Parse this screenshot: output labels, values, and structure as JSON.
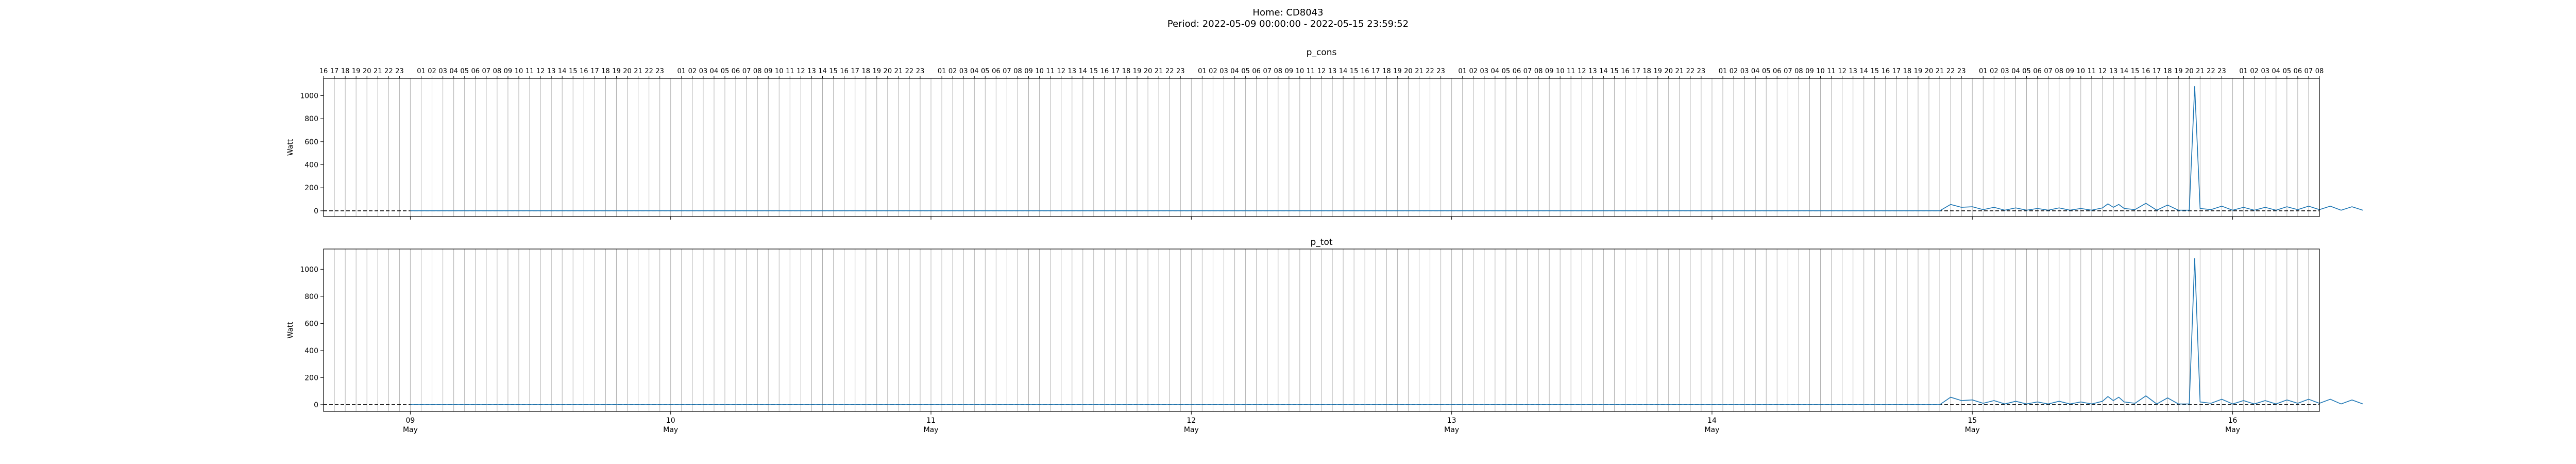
{
  "header": {
    "title": "Home: CD8043",
    "subtitle": "Period: 2022-05-09 00:00:00 - 2022-05-15 23:59:52"
  },
  "chart_data": [
    {
      "type": "line",
      "title": "p_cons",
      "ylabel": "Watt",
      "xlabel": "",
      "x_range": [
        "2022-05-08 16:00",
        "2022-05-16 08:00"
      ],
      "ylim": [
        -50,
        1150
      ],
      "yticks": [
        0,
        200,
        400,
        600,
        800,
        1000
      ],
      "x_ticks": [
        {
          "t": "2022-05-09 00:00",
          "day": "09",
          "month": "May"
        },
        {
          "t": "2022-05-10 00:00",
          "day": "10",
          "month": "May"
        },
        {
          "t": "2022-05-11 00:00",
          "day": "11",
          "month": "May"
        },
        {
          "t": "2022-05-12 00:00",
          "day": "12",
          "month": "May"
        },
        {
          "t": "2022-05-13 00:00",
          "day": "13",
          "month": "May"
        },
        {
          "t": "2022-05-14 00:00",
          "day": "14",
          "month": "May"
        },
        {
          "t": "2022-05-15 00:00",
          "day": "15",
          "month": "May"
        },
        {
          "t": "2022-05-16 00:00",
          "day": "16",
          "month": "May"
        }
      ],
      "hour_ticks": "hourly labels 01–23 along top axis",
      "baseline": 0,
      "grid": "vertical hourly lines",
      "series": [
        {
          "color": "#1f77b4",
          "points": [
            [
              "2022-05-09 00:00",
              0
            ],
            [
              "2022-05-14 21:00",
              0
            ],
            [
              "2022-05-14 22:00",
              55
            ],
            [
              "2022-05-14 23:00",
              30
            ],
            [
              "2022-05-15 00:00",
              35
            ],
            [
              "2022-05-15 01:00",
              10
            ],
            [
              "2022-05-15 02:00",
              30
            ],
            [
              "2022-05-15 03:00",
              5
            ],
            [
              "2022-05-15 04:00",
              25
            ],
            [
              "2022-05-15 05:00",
              5
            ],
            [
              "2022-05-15 06:00",
              20
            ],
            [
              "2022-05-15 07:00",
              5
            ],
            [
              "2022-05-15 08:00",
              25
            ],
            [
              "2022-05-15 09:00",
              5
            ],
            [
              "2022-05-15 10:00",
              20
            ],
            [
              "2022-05-15 11:00",
              5
            ],
            [
              "2022-05-15 12:00",
              25
            ],
            [
              "2022-05-15 12:30",
              60
            ],
            [
              "2022-05-15 13:00",
              30
            ],
            [
              "2022-05-15 13:30",
              55
            ],
            [
              "2022-05-15 14:00",
              20
            ],
            [
              "2022-05-15 15:00",
              10
            ],
            [
              "2022-05-15 16:00",
              65
            ],
            [
              "2022-05-15 17:00",
              5
            ],
            [
              "2022-05-15 18:00",
              50
            ],
            [
              "2022-05-15 19:00",
              5
            ],
            [
              "2022-05-15 20:00",
              5
            ],
            [
              "2022-05-15 20:30",
              1080
            ],
            [
              "2022-05-15 21:00",
              20
            ],
            [
              "2022-05-15 22:00",
              10
            ],
            [
              "2022-05-15 23:00",
              40
            ],
            [
              "2022-05-16 00:00",
              5
            ],
            [
              "2022-05-16 01:00",
              30
            ],
            [
              "2022-05-16 02:00",
              5
            ],
            [
              "2022-05-16 03:00",
              30
            ],
            [
              "2022-05-16 04:00",
              5
            ],
            [
              "2022-05-16 05:00",
              35
            ],
            [
              "2022-05-16 06:00",
              10
            ],
            [
              "2022-05-16 07:00",
              40
            ],
            [
              "2022-05-16 08:00",
              10
            ],
            [
              "2022-05-16 09:00",
              40
            ],
            [
              "2022-05-16 10:00",
              5
            ],
            [
              "2022-05-16 11:00",
              35
            ],
            [
              "2022-05-16 12:00",
              5
            ]
          ]
        }
      ]
    },
    {
      "type": "line",
      "title": "p_tot",
      "ylabel": "Watt",
      "xlabel": "",
      "x_range": [
        "2022-05-08 16:00",
        "2022-05-16 08:00"
      ],
      "ylim": [
        -50,
        1150
      ],
      "yticks": [
        0,
        200,
        400,
        600,
        800,
        1000
      ],
      "baseline": 0,
      "grid": "vertical hourly lines",
      "series": [
        {
          "color": "#1f77b4",
          "points": [
            [
              "2022-05-09 00:00",
              0
            ],
            [
              "2022-05-14 21:00",
              0
            ],
            [
              "2022-05-14 22:00",
              55
            ],
            [
              "2022-05-14 23:00",
              30
            ],
            [
              "2022-05-15 00:00",
              35
            ],
            [
              "2022-05-15 01:00",
              10
            ],
            [
              "2022-05-15 02:00",
              30
            ],
            [
              "2022-05-15 03:00",
              5
            ],
            [
              "2022-05-15 04:00",
              25
            ],
            [
              "2022-05-15 05:00",
              5
            ],
            [
              "2022-05-15 06:00",
              20
            ],
            [
              "2022-05-15 07:00",
              5
            ],
            [
              "2022-05-15 08:00",
              25
            ],
            [
              "2022-05-15 09:00",
              5
            ],
            [
              "2022-05-15 10:00",
              20
            ],
            [
              "2022-05-15 11:00",
              5
            ],
            [
              "2022-05-15 12:00",
              25
            ],
            [
              "2022-05-15 12:30",
              60
            ],
            [
              "2022-05-15 13:00",
              30
            ],
            [
              "2022-05-15 13:30",
              55
            ],
            [
              "2022-05-15 14:00",
              20
            ],
            [
              "2022-05-15 15:00",
              10
            ],
            [
              "2022-05-15 16:00",
              65
            ],
            [
              "2022-05-15 17:00",
              5
            ],
            [
              "2022-05-15 18:00",
              50
            ],
            [
              "2022-05-15 19:00",
              5
            ],
            [
              "2022-05-15 20:00",
              5
            ],
            [
              "2022-05-15 20:30",
              1080
            ],
            [
              "2022-05-15 21:00",
              20
            ],
            [
              "2022-05-15 22:00",
              10
            ],
            [
              "2022-05-15 23:00",
              40
            ],
            [
              "2022-05-16 00:00",
              5
            ],
            [
              "2022-05-16 01:00",
              30
            ],
            [
              "2022-05-16 02:00",
              5
            ],
            [
              "2022-05-16 03:00",
              30
            ],
            [
              "2022-05-16 04:00",
              5
            ],
            [
              "2022-05-16 05:00",
              35
            ],
            [
              "2022-05-16 06:00",
              10
            ],
            [
              "2022-05-16 07:00",
              40
            ],
            [
              "2022-05-16 08:00",
              10
            ],
            [
              "2022-05-16 09:00",
              40
            ],
            [
              "2022-05-16 10:00",
              5
            ],
            [
              "2022-05-16 11:00",
              35
            ],
            [
              "2022-05-16 12:00",
              5
            ]
          ]
        }
      ]
    }
  ]
}
